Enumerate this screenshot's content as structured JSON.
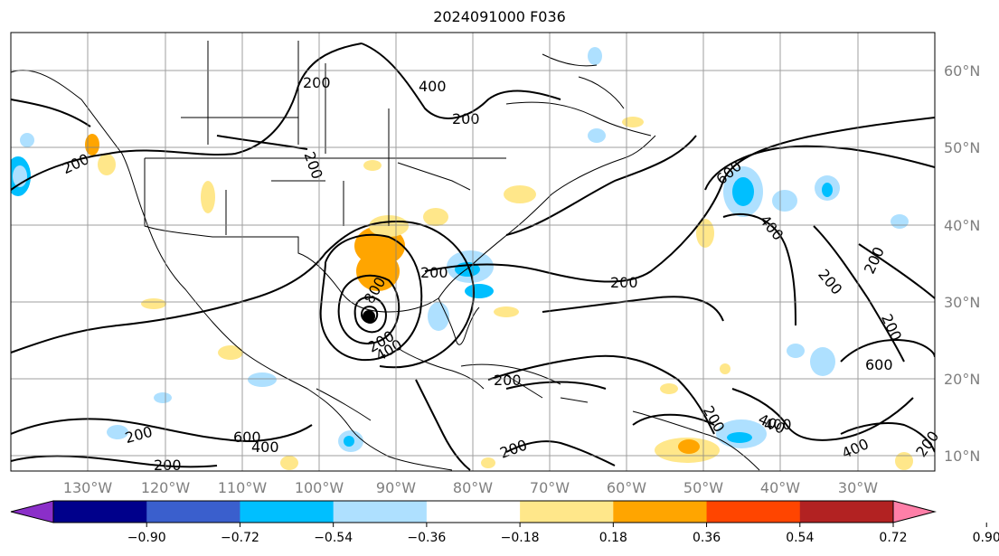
{
  "title": "2024091000 F036",
  "lon_ticks": [
    "130°W",
    "120°W",
    "110°W",
    "100°W",
    "90°W",
    "80°W",
    "70°W",
    "60°W",
    "50°W",
    "40°W",
    "30°W"
  ],
  "lat_ticks": [
    "60°N",
    "50°N",
    "40°N",
    "30°N",
    "20°N",
    "10°N"
  ],
  "colorbar": {
    "labels": [
      "−0.90",
      "−0.72",
      "−0.54",
      "−0.36",
      "−0.18",
      "0.18",
      "0.36",
      "0.54",
      "0.72",
      "0.90"
    ],
    "colors": [
      "#8b2fc9",
      "#00008b",
      "#3a5fcd",
      "#00bfff",
      "#aee0ff",
      "#ffffff",
      "#ffe78a",
      "#ffa500",
      "#ff4500",
      "#b22222",
      "#ff7fa8"
    ]
  },
  "contour_labels": [
    "200",
    "400",
    "200",
    "200",
    "200",
    "200",
    "200",
    "600",
    "400",
    "200",
    "200",
    "200",
    "600",
    "200",
    "200",
    "400",
    "400",
    "200",
    "600",
    "400",
    "800",
    "200",
    "200",
    "200",
    "200",
    "400",
    "400"
  ]
}
